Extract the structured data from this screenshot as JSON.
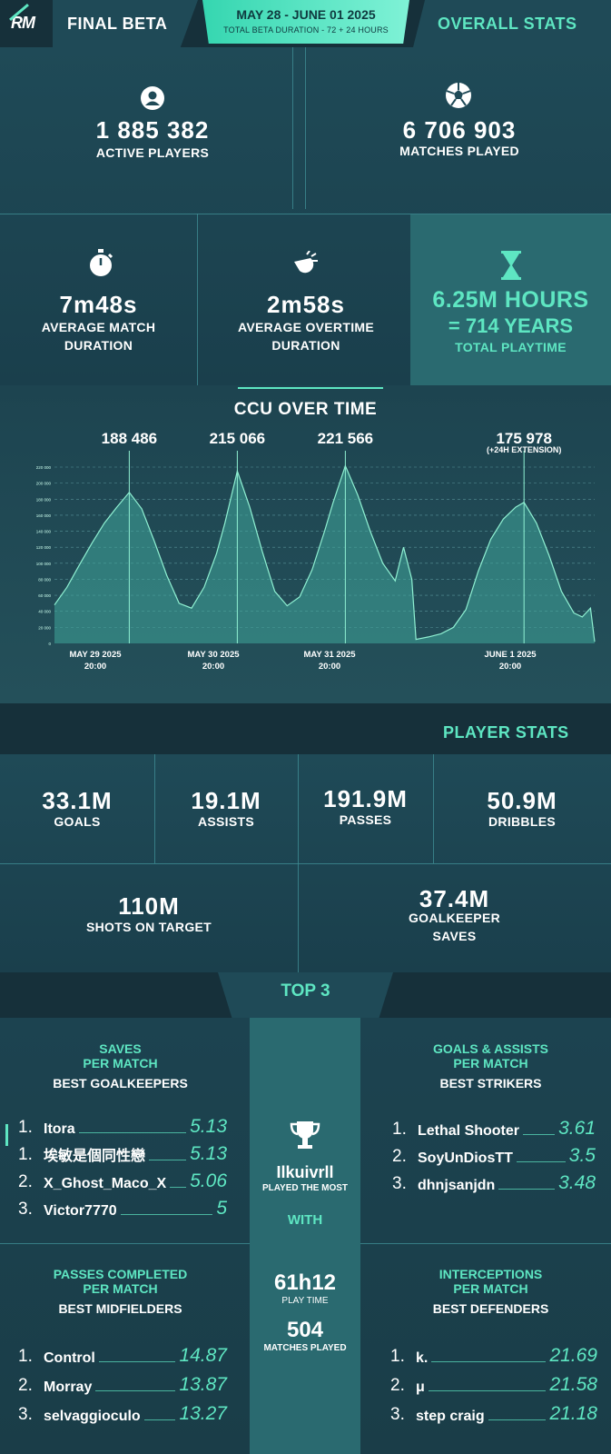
{
  "header": {
    "logo": "RM",
    "title": "FINAL BETA",
    "dates": "MAY 28 - JUNE 01 2025",
    "duration": "TOTAL BETA DURATION - 72 + 24 HOURS",
    "section": "OVERALL STATS"
  },
  "overall": {
    "active_players": {
      "value": "1 885 382",
      "label": "ACTIVE PLAYERS",
      "icon": "user-icon"
    },
    "matches_played": {
      "value": "6 706 903",
      "label": "MATCHES PLAYED",
      "icon": "soccer-ball-icon"
    },
    "avg_match": {
      "value": "7m48s",
      "label1": "AVERAGE MATCH",
      "label2": "DURATION",
      "icon": "stopwatch-icon"
    },
    "avg_overtime": {
      "value": "2m58s",
      "label1": "AVERAGE OVERTIME",
      "label2": "DURATION",
      "icon": "whistle-icon"
    },
    "playtime": {
      "value": "6.25M HOURS",
      "equiv": "= 714 YEARS",
      "label": "TOTAL PLAYTIME",
      "icon": "hourglass-icon"
    }
  },
  "ccu": {
    "title": "CCU OVER TIME",
    "peaks": [
      {
        "value": "188 486",
        "note": ""
      },
      {
        "value": "215 066",
        "note": ""
      },
      {
        "value": "221 566",
        "note": ""
      },
      {
        "value": "175 978",
        "note": "(+24H EXTENSION)"
      }
    ],
    "date_labels": [
      {
        "date": "MAY 29 2025",
        "time": "20:00"
      },
      {
        "date": "MAY 30 2025",
        "time": "20:00"
      },
      {
        "date": "MAY 31 2025",
        "time": "20:00"
      },
      {
        "date": "JUNE 1 2025",
        "time": "20:00"
      }
    ]
  },
  "chart_data": {
    "type": "area",
    "title": "CCU OVER TIME",
    "xlabel": "",
    "ylabel": "",
    "ylim": [
      0,
      220000
    ],
    "y_ticks": [
      0,
      20000,
      40000,
      60000,
      80000,
      100000,
      120000,
      140000,
      160000,
      180000,
      200000,
      220000
    ],
    "y_tick_labels": [
      "0",
      "20 000",
      "40 000",
      "60 000",
      "80 000",
      "100 000",
      "120 000",
      "140 000",
      "160 000",
      "180 000",
      "200 000",
      "220 000"
    ],
    "x_ticks": [
      {
        "x": 0.18,
        "label": "MAY 29 2025 20:00"
      },
      {
        "x": 0.44,
        "label": "MAY 30 2025 20:00"
      },
      {
        "x": 0.7,
        "label": "MAY 31 2025 20:00"
      },
      {
        "x": 1.13,
        "label": "JUNE 1 2025 20:00"
      }
    ],
    "grid": true,
    "x": [
      0,
      0.03,
      0.06,
      0.09,
      0.12,
      0.15,
      0.18,
      0.21,
      0.24,
      0.27,
      0.3,
      0.33,
      0.36,
      0.39,
      0.41,
      0.44,
      0.47,
      0.5,
      0.53,
      0.56,
      0.59,
      0.62,
      0.65,
      0.67,
      0.7,
      0.73,
      0.76,
      0.79,
      0.82,
      0.84,
      0.86,
      0.87,
      0.88,
      0.9,
      0.93,
      0.96,
      0.99,
      1.02,
      1.05,
      1.08,
      1.11,
      1.13,
      1.16,
      1.19,
      1.22,
      1.25,
      1.27,
      1.29,
      1.3
    ],
    "values": [
      48000,
      70000,
      98000,
      125000,
      150000,
      170000,
      188486,
      168000,
      128000,
      85000,
      50000,
      44000,
      70000,
      112000,
      150000,
      215066,
      170000,
      115000,
      65000,
      47000,
      58000,
      92000,
      140000,
      175000,
      221566,
      185000,
      140000,
      100000,
      78000,
      120000,
      80000,
      5000,
      6000,
      8000,
      12000,
      20000,
      42000,
      90000,
      130000,
      155000,
      170000,
      175978,
      150000,
      110000,
      65000,
      38000,
      33000,
      44000,
      2000
    ]
  },
  "player_stats": {
    "title": "PLAYER STATS",
    "goals": {
      "value": "33.1M",
      "label": "GOALS"
    },
    "assists": {
      "value": "19.1M",
      "label": "ASSISTS"
    },
    "passes": {
      "value": "191.9M",
      "label": "PASSES"
    },
    "dribbles": {
      "value": "50.9M",
      "label": "DRIBBLES"
    },
    "shots": {
      "value": "110M",
      "label": "SHOTS ON TARGET"
    },
    "saves": {
      "value": "37.4M",
      "label1": "GOALKEEPER",
      "label2": "SAVES"
    }
  },
  "top3": {
    "title": "TOP 3",
    "goalkeepers": {
      "t1": "SAVES",
      "t2": "PER MATCH",
      "sub": "BEST GOALKEEPERS",
      "rows": [
        {
          "rank": "1.",
          "name": "Itora",
          "value": "5.13"
        },
        {
          "rank": "1.",
          "name": "埃敏是個同性戀",
          "value": "5.13"
        },
        {
          "rank": "2.",
          "name": "X_Ghost_Maco_X",
          "value": "5.06"
        },
        {
          "rank": "3.",
          "name": "Victor7770",
          "value": "5"
        }
      ]
    },
    "strikers": {
      "t1": "GOALS & ASSISTS",
      "t2": "PER MATCH",
      "sub": "BEST STRIKERS",
      "rows": [
        {
          "rank": "1.",
          "name": "Lethal Shooter",
          "value": "3.61"
        },
        {
          "rank": "2.",
          "name": "SoyUnDiosTT",
          "value": "3.5"
        },
        {
          "rank": "3.",
          "name": "dhnjsanjdn",
          "value": "3.48"
        }
      ]
    },
    "midfielders": {
      "t1": "PASSES COMPLETED",
      "t2": "PER MATCH",
      "sub": "BEST MIDFIELDERS",
      "rows": [
        {
          "rank": "1.",
          "name": "Control",
          "value": "14.87"
        },
        {
          "rank": "2.",
          "name": "Morray",
          "value": "13.87"
        },
        {
          "rank": "3.",
          "name": "selvaggioculo",
          "value": "13.27"
        }
      ]
    },
    "defenders": {
      "t1": "INTERCEPTIONS",
      "t2": "PER MATCH",
      "sub": "BEST DEFENDERS",
      "rows": [
        {
          "rank": "1.",
          "name": "k.",
          "value": "21.69"
        },
        {
          "rank": "2.",
          "name": "μ",
          "value": "21.58"
        },
        {
          "rank": "3.",
          "name": "step craig",
          "value": "21.18"
        }
      ]
    },
    "most_played": {
      "icon": "trophy-icon",
      "name": "Ilkuivrll",
      "label": "PLAYED THE MOST",
      "with": "WITH",
      "playtime": "61h12",
      "playtime_label": "PLAY TIME",
      "matches": "504",
      "matches_label": "MATCHES PLAYED"
    }
  },
  "colors": {
    "accent": "#5ee6c2",
    "bg_dark": "#16303a",
    "panel": "#1f4a57",
    "line": "#3f8c94"
  }
}
